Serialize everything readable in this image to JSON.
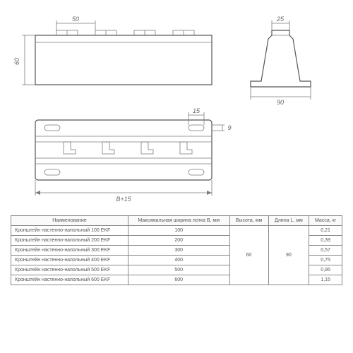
{
  "drawing": {
    "dim_50": "50",
    "dim_60": "60",
    "dim_15": "15",
    "dim_9": "9",
    "dim_b15": "B+15",
    "dim_25": "25",
    "dim_90": "90",
    "line_color": "#7a7a7a",
    "text_color": "#6a6a6a"
  },
  "table": {
    "columns": [
      "Наименование",
      "Максимальная ширина лотка B, мм",
      "Высота, мм",
      "Длина L, мм",
      "Масса, кг"
    ],
    "rows": [
      [
        "Кронштейн настенно-напольный 100 EKF",
        "100",
        "60",
        "90",
        "0,21"
      ],
      [
        "Кронштейн настенно-напольный 200 EKF",
        "200",
        "60",
        "90",
        "0,39"
      ],
      [
        "Кронштейн настенно-напольный 300 EKF",
        "300",
        "60",
        "90",
        "0,57"
      ],
      [
        "Кронштейн настенно-напольный 400 EKF",
        "400",
        "60",
        "90",
        "0,75"
      ],
      [
        "Кронштейн настенно-напольный 500 EKF",
        "500",
        "60",
        "90",
        "0,95"
      ],
      [
        "Кронштейн настенно-напольный 600 EKF",
        "600",
        "60",
        "90",
        "1,15"
      ]
    ],
    "merge_col2": "60",
    "merge_col3": "90"
  }
}
